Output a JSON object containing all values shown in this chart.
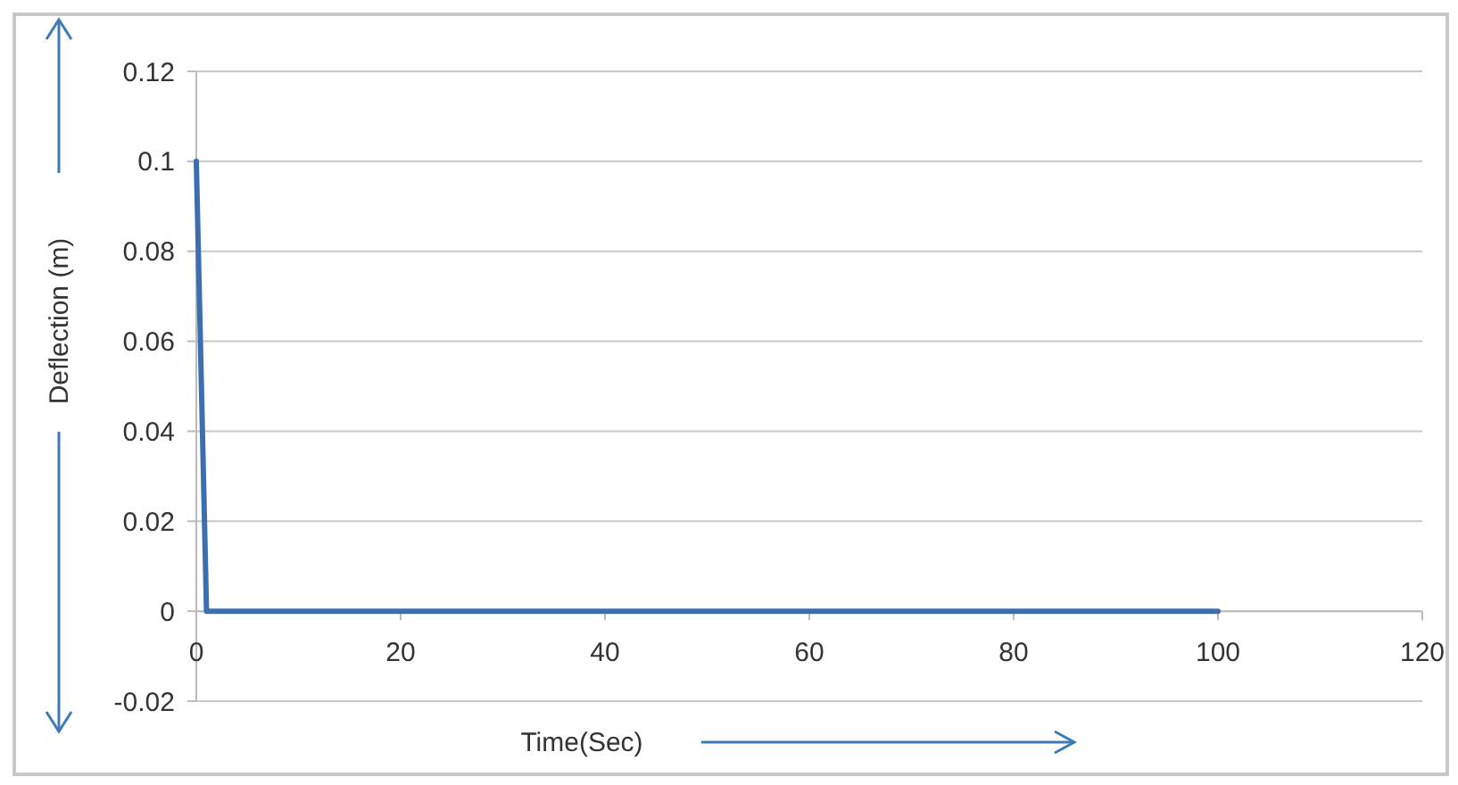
{
  "chart_data": {
    "type": "line",
    "xlabel": "Time(Sec)",
    "ylabel": "Deflection (m)",
    "x": [
      0,
      1,
      100
    ],
    "series": [
      {
        "color": "#3d6fb0",
        "values": [
          0.1,
          0,
          0
        ]
      }
    ],
    "xlim": [
      0,
      120
    ],
    "xticks": [
      0,
      20,
      40,
      60,
      80,
      100,
      120
    ],
    "ylim": [
      -0.02,
      0.12
    ],
    "yticks": [
      -0.02,
      0,
      0.02,
      0.04,
      0.06,
      0.08,
      0.1,
      0.12
    ],
    "grid": "y",
    "marker": "none",
    "line_style": "solid"
  }
}
